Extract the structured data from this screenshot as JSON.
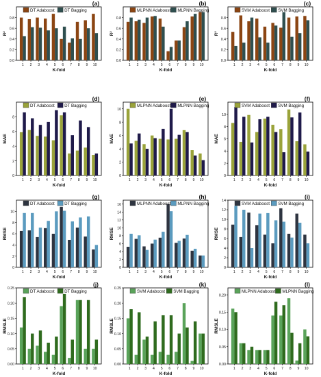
{
  "palette": {
    "brown": "#8b4513",
    "darkslate": "#2f4f4f",
    "olive": "#9aa33a",
    "navy": "#1f1a4a",
    "charcoal": "#2e3440",
    "steelblue": "#5b9bbf",
    "lightgreen": "#5aa35a",
    "darkgreen": "#2f6b1e"
  },
  "chart_data": [
    {
      "type": "bar",
      "panel": "(a)",
      "categories": [
        "1",
        "2",
        "3",
        "4",
        "5",
        "6",
        "7",
        "8",
        "9",
        "10"
      ],
      "xlabel": "K-fold",
      "ylabel": "R²",
      "ylim": [
        0,
        1.0
      ],
      "yticks": [
        0,
        0.2,
        0.4,
        0.6,
        0.8
      ],
      "yticklabels": [
        "0.0",
        "0.2",
        "0.4",
        "0.6",
        "0.8"
      ],
      "legend_position": "top",
      "series": [
        {
          "name": "DT Adaboost",
          "color": "#8b4513",
          "values": [
            0.8,
            0.77,
            0.8,
            0.78,
            0.87,
            0.4,
            0.33,
            0.72,
            0.75,
            0.87
          ]
        },
        {
          "name": "DT Bagging",
          "color": "#2f4f4f",
          "values": [
            0.45,
            0.62,
            0.61,
            0.56,
            0.6,
            0.63,
            0.41,
            0.4,
            0.6,
            0.51
          ]
        }
      ]
    },
    {
      "type": "bar",
      "panel": "(b)",
      "categories": [
        "1",
        "2",
        "3",
        "4",
        "5",
        "6",
        "7",
        "8",
        "9",
        "10"
      ],
      "xlabel": "K-fold",
      "ylabel": "R²",
      "ylim": [
        0,
        1.0
      ],
      "yticks": [
        0,
        0.2,
        0.4,
        0.6,
        0.8
      ],
      "yticklabels": [
        "0.0",
        "0.2",
        "0.4",
        "0.6",
        "0.8"
      ],
      "legend_position": "top",
      "series": [
        {
          "name": "MLPNN Adaboost",
          "color": "#8b4513",
          "values": [
            0.72,
            0.73,
            0.7,
            0.82,
            0.78,
            0.17,
            0.37,
            0.62,
            0.82,
            0.9
          ]
        },
        {
          "name": "MLPNN Bagging",
          "color": "#2f4f4f",
          "values": [
            0.8,
            0.76,
            0.8,
            0.83,
            0.63,
            0.25,
            0.37,
            0.73,
            0.87,
            0.9
          ]
        }
      ]
    },
    {
      "type": "bar",
      "panel": "(c)",
      "categories": [
        "1",
        "2",
        "3",
        "4",
        "5",
        "6",
        "7",
        "8",
        "9",
        "10"
      ],
      "xlabel": "K-fold",
      "ylabel": "R²",
      "ylim": [
        0,
        1.0
      ],
      "yticks": [
        0,
        0.2,
        0.4,
        0.6,
        0.8
      ],
      "yticklabels": [
        "0.0",
        "0.2",
        "0.4",
        "0.6",
        "0.8"
      ],
      "legend_position": "top",
      "series": [
        {
          "name": "SVM Adaboost",
          "color": "#8b4513",
          "values": [
            0.53,
            0.84,
            0.73,
            0.78,
            0.63,
            0.7,
            0.61,
            0.8,
            0.82,
            0.83
          ]
        },
        {
          "name": "SVM Bagging",
          "color": "#2f4f4f",
          "values": [
            0.27,
            0.33,
            0.8,
            0.43,
            0.33,
            0.65,
            0.9,
            0.44,
            0.51,
            0.75
          ]
        }
      ]
    },
    {
      "type": "bar",
      "panel": "(d)",
      "categories": [
        "1",
        "2",
        "3",
        "4",
        "5",
        "6",
        "7",
        "8",
        "9",
        "10"
      ],
      "xlabel": "K-fold",
      "ylabel": "MAE",
      "ylim": [
        0,
        10
      ],
      "yticks": [
        0,
        2,
        4,
        6,
        8
      ],
      "yticklabels": [
        "0",
        "2",
        "4",
        "6",
        "8"
      ],
      "legend_position": "top",
      "series": [
        {
          "name": "DT Adaboost",
          "color": "#9aa33a",
          "values": [
            5.9,
            6.2,
            5.4,
            5.3,
            4.8,
            8.2,
            3.0,
            3.4,
            3.8,
            2.8
          ]
        },
        {
          "name": "DT Bagging",
          "color": "#1f1a4a",
          "values": [
            8.6,
            7.8,
            6.9,
            7.3,
            8.9,
            8.6,
            5.5,
            7.5,
            6.6,
            3.0
          ]
        }
      ]
    },
    {
      "type": "bar",
      "panel": "(e)",
      "categories": [
        "1",
        "2",
        "3",
        "4",
        "5",
        "6",
        "7",
        "8",
        "9",
        "10"
      ],
      "xlabel": "K-fold",
      "ylabel": "MAE",
      "ylim": [
        0,
        11
      ],
      "yticks": [
        0,
        2,
        4,
        6,
        8,
        10
      ],
      "yticklabels": [
        "0",
        "2",
        "4",
        "6",
        "8",
        "10"
      ],
      "legend_position": "top",
      "series": [
        {
          "name": "MLPNN Adaboost",
          "color": "#9aa33a",
          "values": [
            10.0,
            5.2,
            4.7,
            6.0,
            5.5,
            5.4,
            5.5,
            6.8,
            3.8,
            3.3
          ]
        },
        {
          "name": "MLPNN Bagging",
          "color": "#1f1a4a",
          "values": [
            4.8,
            6.3,
            4.0,
            5.6,
            7.0,
            10.0,
            6.1,
            6.5,
            3.0,
            2.3
          ]
        }
      ]
    },
    {
      "type": "bar",
      "panel": "(f)",
      "categories": [
        "1",
        "2",
        "3",
        "4",
        "5",
        "6",
        "7",
        "8",
        "9",
        "10"
      ],
      "xlabel": "K-fold",
      "ylabel": "MAE",
      "ylim": [
        0,
        12
      ],
      "yticks": [
        0,
        2,
        4,
        6,
        8,
        10
      ],
      "yticklabels": [
        "0",
        "2",
        "4",
        "6",
        "8",
        "10"
      ],
      "legend_position": "top",
      "series": [
        {
          "name": "SVM Adaboost",
          "color": "#9aa33a",
          "values": [
            8.6,
            5.5,
            9.9,
            7.1,
            9.3,
            8.3,
            7.6,
            10.8,
            5.6,
            5.1
          ]
        },
        {
          "name": "SVM Bagging",
          "color": "#1f1a4a",
          "values": [
            11.2,
            9.6,
            5.4,
            9.2,
            9.6,
            7.1,
            3.8,
            9.5,
            10.3,
            3.9
          ]
        }
      ]
    },
    {
      "type": "bar",
      "panel": "(g)",
      "categories": [
        "1",
        "2",
        "3",
        "4",
        "5",
        "6",
        "7",
        "8",
        "9",
        "10"
      ],
      "xlabel": "K-fold",
      "ylabel": "RMSE",
      "ylim": [
        0,
        12
      ],
      "yticks": [
        0,
        2,
        4,
        6,
        8,
        10
      ],
      "yticklabels": [
        "0",
        "2",
        "4",
        "6",
        "8",
        "10"
      ],
      "legend_position": "top",
      "series": [
        {
          "name": "DT Adaboost",
          "color": "#2e3440",
          "values": [
            6.5,
            6.6,
            5.4,
            7.0,
            6.0,
            10.8,
            4.9,
            7.1,
            5.5,
            3.2
          ]
        },
        {
          "name": "DT Bagging",
          "color": "#5b9bbf",
          "values": [
            9.7,
            9.7,
            7.1,
            8.3,
            10.0,
            10.1,
            8.2,
            8.9,
            9.1,
            4.0
          ]
        }
      ]
    },
    {
      "type": "bar",
      "panel": "(h)",
      "categories": [
        "1",
        "2",
        "3",
        "4",
        "5",
        "6",
        "7",
        "8",
        "9",
        "10"
      ],
      "xlabel": "K-fold",
      "ylabel": "RMSE",
      "ylim": [
        0,
        17
      ],
      "yticks": [
        0,
        2,
        4,
        6,
        8,
        10,
        12,
        14,
        16
      ],
      "yticklabels": [
        "0",
        "2",
        "4",
        "6",
        "8",
        "10",
        "12",
        "14",
        "16"
      ],
      "legend_position": "top",
      "series": [
        {
          "name": "MLPNN Adaboost",
          "color": "#2e3440",
          "values": [
            5.2,
            7.2,
            5.3,
            6.0,
            7.5,
            16.0,
            6.2,
            7.3,
            4.2,
            3.0
          ]
        },
        {
          "name": "MLPNN Bagging",
          "color": "#5b9bbf",
          "values": [
            8.5,
            8.1,
            4.4,
            7.0,
            9.0,
            14.2,
            6.7,
            8.2,
            4.7,
            3.0
          ]
        }
      ]
    },
    {
      "type": "bar",
      "panel": "(i)",
      "categories": [
        "1",
        "2",
        "3",
        "4",
        "5",
        "6",
        "7",
        "8",
        "9",
        "10"
      ],
      "xlabel": "K-fold",
      "ylabel": "RMSE",
      "ylim": [
        0,
        14
      ],
      "yticks": [
        0,
        2,
        4,
        6,
        8,
        10,
        12,
        14
      ],
      "yticklabels": [
        "0",
        "2",
        "4",
        "6",
        "8",
        "10",
        "12",
        "14"
      ],
      "legend_position": "top",
      "series": [
        {
          "name": "SVM Adaboost",
          "color": "#2e3440",
          "values": [
            8.9,
            6.3,
            11.4,
            8.8,
            6.8,
            5.0,
            12.3,
            7.0,
            11.2,
            6.8
          ]
        },
        {
          "name": "SVM Bagging",
          "color": "#5b9bbf",
          "values": [
            12.8,
            12.0,
            4.0,
            11.2,
            11.3,
            9.8,
            9.5,
            6.2,
            9.3,
            5.0
          ]
        }
      ]
    },
    {
      "type": "bar",
      "panel": "(j)",
      "categories": [
        "1",
        "2",
        "3",
        "4",
        "5",
        "6",
        "7",
        "8",
        "9",
        "10"
      ],
      "xlabel": "K-fold",
      "ylabel": "RMSLE",
      "ylim": [
        0,
        0.25
      ],
      "yticks": [
        0,
        0.05,
        0.1,
        0.15,
        0.2,
        0.25
      ],
      "yticklabels": [
        "0.00",
        "0.05",
        "0.10",
        "0.15",
        "0.20",
        "0.25"
      ],
      "legend_position": "top",
      "series": [
        {
          "name": "DT Adaboost",
          "color": "#5aa35a",
          "values": [
            0.12,
            0.05,
            0.06,
            0.04,
            0.03,
            0.19,
            0.02,
            0.21,
            0.05,
            0.05
          ]
        },
        {
          "name": "DT Bagging",
          "color": "#2f6b1e",
          "values": [
            0.22,
            0.1,
            0.11,
            0.07,
            0.09,
            0.23,
            0.08,
            0.21,
            0.21,
            0.08
          ]
        }
      ]
    },
    {
      "type": "bar",
      "panel": "(k)",
      "categories": [
        "1",
        "2",
        "3",
        "4",
        "5",
        "6",
        "7",
        "8",
        "9",
        "10"
      ],
      "xlabel": "K-fold",
      "ylabel": "RMSLE",
      "ylim": [
        0,
        0.25
      ],
      "yticks": [
        0,
        0.05,
        0.1,
        0.15,
        0.2,
        0.25
      ],
      "yticklabels": [
        "0.00",
        "0.05",
        "0.10",
        "0.15",
        "0.20",
        "0.25"
      ],
      "legend_position": "top",
      "series": [
        {
          "name": "SVM Adaboost",
          "color": "#5aa35a",
          "values": [
            0.15,
            0.03,
            0.08,
            0.03,
            0.04,
            0.03,
            0.04,
            0.2,
            0.01,
            0.1
          ]
        },
        {
          "name": "SVM Bagging",
          "color": "#2f6b1e",
          "values": [
            0.18,
            0.17,
            0.09,
            0.14,
            0.16,
            0.16,
            0.1,
            0.12,
            0.14,
            0.1
          ]
        }
      ]
    },
    {
      "type": "bar",
      "panel": "(l)",
      "categories": [
        "1",
        "2",
        "3",
        "4",
        "5",
        "6",
        "7",
        "8",
        "9",
        "10"
      ],
      "xlabel": "K-fold",
      "ylabel": "RMSLE",
      "ylim": [
        0,
        0.22
      ],
      "yticks": [
        0,
        0.05,
        0.1,
        0.15,
        0.2
      ],
      "yticklabels": [
        "0.00",
        "0.05",
        "0.10",
        "0.15",
        "0.20"
      ],
      "legend_position": "top",
      "series": [
        {
          "name": "MLPNN Adaboost",
          "color": "#5aa35a",
          "values": [
            0.16,
            0.06,
            0.04,
            0.04,
            0.04,
            0.14,
            0.14,
            0.19,
            0.01,
            0.1
          ]
        },
        {
          "name": "MLPNN Bagging",
          "color": "#2f6b1e",
          "values": [
            0.15,
            0.06,
            0.05,
            0.04,
            0.04,
            0.18,
            0.17,
            0.09,
            0.06,
            0.08
          ]
        }
      ]
    }
  ]
}
